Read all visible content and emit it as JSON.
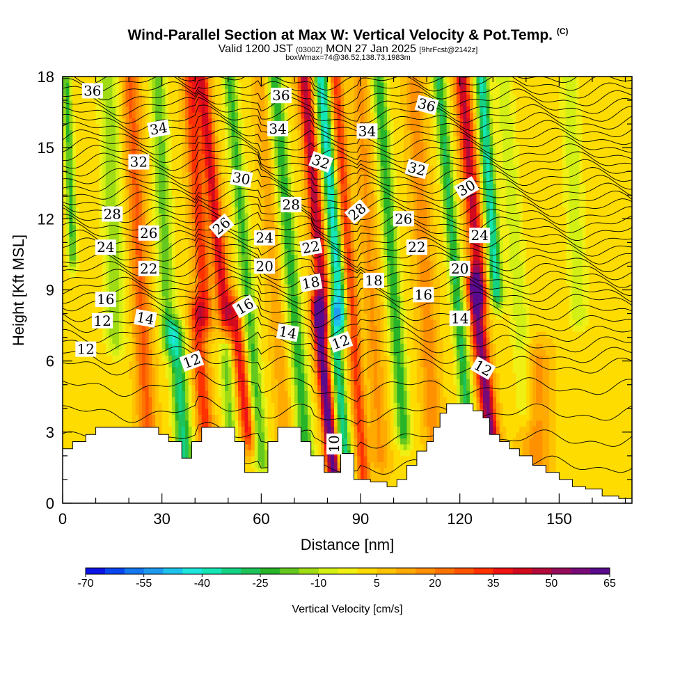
{
  "title": {
    "line1": "Wind-Parallel Section at Max W: Vertical Velocity & Pot.Temp.",
    "line1_mark": "(C)",
    "line2_pre": "Valid 1200 JST",
    "line2_small1": "(0300Z)",
    "line2_mid": "MON 27 Jan 2025",
    "line2_small2": "[9hrFcst@2142z]",
    "line3": "boxWmax=74@36.52,138.73,1983m"
  },
  "chart_data": {
    "type": "heatmap",
    "xlabel": "Distance [nm]",
    "ylabel": "Height [Kft MSL]",
    "xlim": [
      0,
      172
    ],
    "ylim": [
      0,
      18
    ],
    "x_ticks": [
      "0",
      "30",
      "60",
      "90",
      "120",
      "150"
    ],
    "y_ticks": [
      "0",
      "3",
      "6",
      "9",
      "12",
      "15",
      "18"
    ],
    "colorbar": {
      "title": "Vertical Velocity [cm/s]",
      "tick_labels": [
        "-70",
        "-55",
        "-40",
        "-25",
        "-10",
        "5",
        "20",
        "35",
        "50",
        "65"
      ],
      "colors": [
        "#0a14e6",
        "#0a46f0",
        "#1478f0",
        "#1e9bf0",
        "#1ec3eb",
        "#1ee6dc",
        "#14e6b4",
        "#14d282",
        "#1ec35a",
        "#28b428",
        "#64c81e",
        "#a0dc14",
        "#d2f014",
        "#f0f014",
        "#ffdc00",
        "#ffc300",
        "#ffaa00",
        "#ff9100",
        "#ff7300",
        "#ff5500",
        "#ff3200",
        "#f01414",
        "#d20a1e",
        "#b40a3c",
        "#960a5a",
        "#780a78",
        "#5a0a8c"
      ]
    },
    "theta_contour_labels": [
      "10",
      "12",
      "12",
      "12",
      "12",
      "12",
      "14",
      "14",
      "14",
      "16",
      "16",
      "16",
      "18",
      "18",
      "20",
      "20",
      "22",
      "22",
      "22",
      "24",
      "24",
      "24",
      "26",
      "26",
      "26",
      "28",
      "28",
      "28",
      "30",
      "30",
      "32",
      "32",
      "32",
      "34",
      "34",
      "34",
      "36",
      "36",
      "36"
    ],
    "w_extremes": {
      "max": 65,
      "min": -70
    }
  }
}
